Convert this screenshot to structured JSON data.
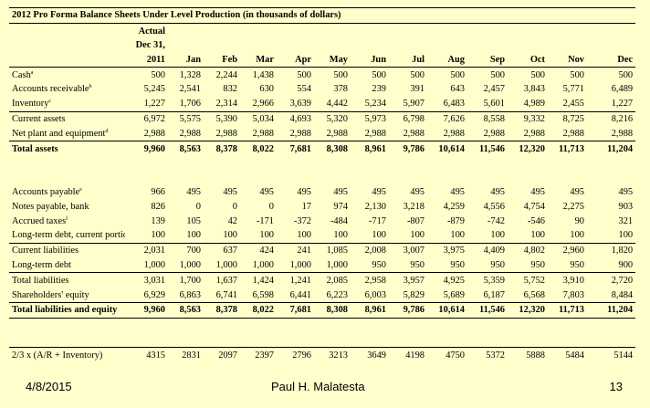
{
  "title": "2012 Pro Forma Balance Sheets Under Level Production (in thousands of dollars)",
  "header": {
    "actual_line1": "Actual",
    "actual_line2": "Dec 31,",
    "actual_line3": "2011",
    "months": [
      "Jan",
      "Feb",
      "Mar",
      "Apr",
      "May",
      "Jun",
      "Jul",
      "Aug",
      "Sep",
      "Oct",
      "Nov",
      "Dec"
    ]
  },
  "rows": [
    {
      "label": "Cash",
      "note": "a",
      "values": [
        "500",
        "1,328",
        "2,244",
        "1,438",
        "500",
        "500",
        "500",
        "500",
        "500",
        "500",
        "500",
        "500",
        "500"
      ]
    },
    {
      "label": "Accounts receivable",
      "note": "b",
      "values": [
        "5,245",
        "2,541",
        "832",
        "630",
        "554",
        "378",
        "239",
        "391",
        "643",
        "2,457",
        "3,843",
        "5,771",
        "6,489"
      ]
    },
    {
      "label": "Inventory",
      "note": "c",
      "values": [
        "1,227",
        "1,706",
        "2,314",
        "2,966",
        "3,639",
        "4,442",
        "5,234",
        "5,907",
        "6,483",
        "5,601",
        "4,989",
        "2,455",
        "1,227"
      ]
    },
    {
      "label": "Current assets",
      "note": "",
      "values": [
        "6,972",
        "5,575",
        "5,390",
        "5,034",
        "4,693",
        "5,320",
        "5,973",
        "6,798",
        "7,626",
        "8,558",
        "9,332",
        "8,725",
        "8,216"
      ]
    },
    {
      "label": "Net plant and equipment",
      "note": "d",
      "values": [
        "2,988",
        "2,988",
        "2,988",
        "2,988",
        "2,988",
        "2,988",
        "2,988",
        "2,988",
        "2,988",
        "2,988",
        "2,988",
        "2,988",
        "2,988"
      ]
    },
    {
      "label": "Total assets",
      "note": "",
      "values": [
        "9,960",
        "8,563",
        "8,378",
        "8,022",
        "7,681",
        "8,308",
        "8,961",
        "9,786",
        "10,614",
        "11,546",
        "12,320",
        "11,713",
        "11,204"
      ]
    },
    {
      "label": "Accounts payable",
      "note": "e",
      "values": [
        "966",
        "495",
        "495",
        "495",
        "495",
        "495",
        "495",
        "495",
        "495",
        "495",
        "495",
        "495",
        "495"
      ]
    },
    {
      "label": "Notes payable, bank",
      "note": "",
      "values": [
        "826",
        "0",
        "0",
        "0",
        "17",
        "974",
        "2,130",
        "3,218",
        "4,259",
        "4,556",
        "4,754",
        "2,275",
        "903"
      ]
    },
    {
      "label": "Accrued taxes",
      "note": "f",
      "values": [
        "139",
        "105",
        "42",
        "-171",
        "-372",
        "-484",
        "-717",
        "-807",
        "-879",
        "-742",
        "-546",
        "90",
        "321"
      ]
    },
    {
      "label": "Long-term debt, current portion",
      "note": "",
      "values": [
        "100",
        "100",
        "100",
        "100",
        "100",
        "100",
        "100",
        "100",
        "100",
        "100",
        "100",
        "100",
        "100"
      ]
    },
    {
      "label": "Current liabilities",
      "note": "",
      "values": [
        "2,031",
        "700",
        "637",
        "424",
        "241",
        "1,085",
        "2,008",
        "3,007",
        "3,975",
        "4,409",
        "4,802",
        "2,960",
        "1,820"
      ]
    },
    {
      "label": "Long-term debt",
      "note": "",
      "values": [
        "1,000",
        "1,000",
        "1,000",
        "1,000",
        "1,000",
        "1,000",
        "950",
        "950",
        "950",
        "950",
        "950",
        "950",
        "900"
      ]
    },
    {
      "label": "Total liabilities",
      "note": "",
      "values": [
        "3,031",
        "1,700",
        "1,637",
        "1,424",
        "1,241",
        "2,085",
        "2,958",
        "3,957",
        "4,925",
        "5,359",
        "5,752",
        "3,910",
        "2,720"
      ]
    },
    {
      "label": "Shareholders' equity",
      "note": "",
      "values": [
        "6,929",
        "6,863",
        "6,741",
        "6,598",
        "6,441",
        "6,223",
        "6,003",
        "5,829",
        "5,689",
        "6,187",
        "6,568",
        "7,803",
        "8,484"
      ]
    },
    {
      "label": "Total liabilities and equity",
      "note": "",
      "values": [
        "9,960",
        "8,563",
        "8,378",
        "8,022",
        "7,681",
        "8,308",
        "8,961",
        "9,786",
        "10,614",
        "11,546",
        "12,320",
        "11,713",
        "11,204"
      ]
    },
    {
      "label": "2/3 x (A/R + Inventory)",
      "note": "",
      "values": [
        "4315",
        "2831",
        "2097",
        "2397",
        "2796",
        "3213",
        "3649",
        "4198",
        "4750",
        "5372",
        "5888",
        "5484",
        "5144"
      ]
    }
  ],
  "footer": {
    "date": "4/8/2015",
    "author": "Paul H. Malatesta",
    "page": "13"
  }
}
